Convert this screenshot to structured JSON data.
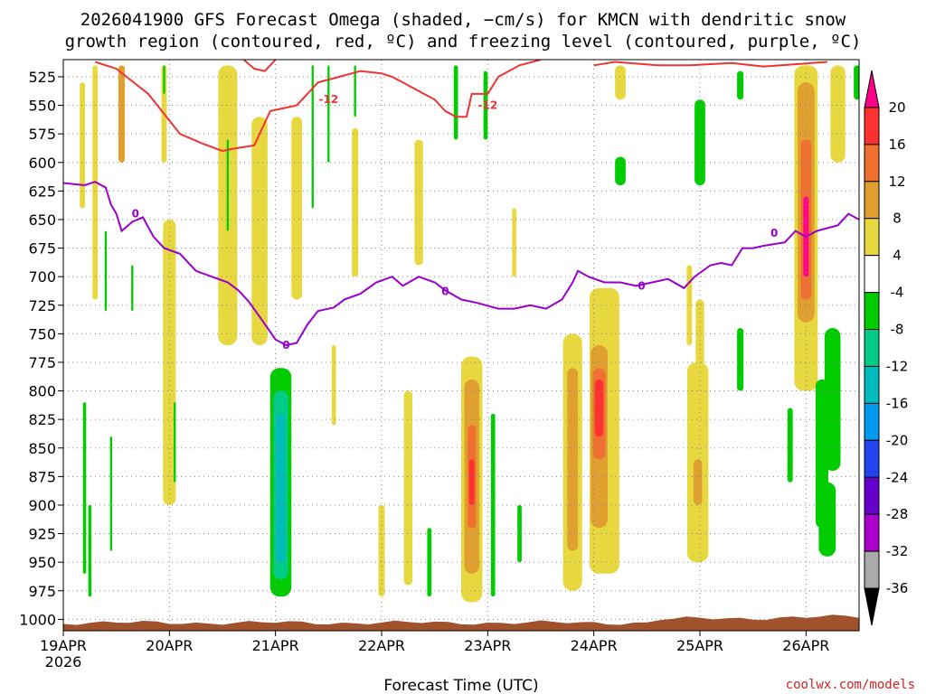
{
  "chart_data": {
    "type": "heatmap",
    "title_line1": "2026041900 GFS Forecast Omega (shaded, −cm/s) for KMCN with dendritic snow",
    "title_line2": "growth region (contoured, red, ºC) and freezing level (contoured, purple, ºC)",
    "xlabel": "Forecast Time (UTC)",
    "credit": "coolwx.com/models",
    "x_ticks": [
      {
        "day": 0,
        "label": "19APR",
        "sub": "2026"
      },
      {
        "day": 1,
        "label": "20APR",
        "sub": ""
      },
      {
        "day": 2,
        "label": "21APR",
        "sub": ""
      },
      {
        "day": 3,
        "label": "22APR",
        "sub": ""
      },
      {
        "day": 4,
        "label": "23APR",
        "sub": ""
      },
      {
        "day": 5,
        "label": "24APR",
        "sub": ""
      },
      {
        "day": 6,
        "label": "25APR",
        "sub": ""
      },
      {
        "day": 7,
        "label": "26APR",
        "sub": ""
      }
    ],
    "xlim_days": [
      0,
      7.5
    ],
    "y_ticks": [
      525,
      550,
      575,
      600,
      625,
      650,
      675,
      700,
      725,
      750,
      775,
      800,
      825,
      850,
      875,
      900,
      925,
      950,
      975,
      1000
    ],
    "ylim_hpa": [
      510,
      1010
    ],
    "colorbar": {
      "labels": [
        "20",
        "16",
        "12",
        "8",
        "4",
        "-4",
        "-8",
        "-12",
        "-16",
        "-20",
        "-24",
        "-28",
        "-32",
        "-36"
      ],
      "bins": [
        {
          "color": "#ff0088"
        },
        {
          "color": "#ff3030"
        },
        {
          "color": "#f07030"
        },
        {
          "color": "#e0a030"
        },
        {
          "color": "#e8d840"
        },
        {
          "color": "#ffffff"
        },
        {
          "color": "#00cc00"
        },
        {
          "color": "#00cc88"
        },
        {
          "color": "#00bbbb"
        },
        {
          "color": "#0099ee"
        },
        {
          "color": "#2244ee"
        },
        {
          "color": "#6600cc"
        },
        {
          "color": "#aa00cc"
        },
        {
          "color": "#aaaaaa"
        },
        {
          "color": "#000000"
        }
      ]
    },
    "shaded_cells": [
      {
        "day": 0.18,
        "width": 0.05,
        "p_top": 530,
        "p_bot": 640,
        "value": 6
      },
      {
        "day": 0.3,
        "width": 0.05,
        "p_top": 515,
        "p_bot": 720,
        "value": 6
      },
      {
        "day": 0.55,
        "width": 0.06,
        "p_top": 515,
        "p_bot": 600,
        "value": 10
      },
      {
        "day": 0.95,
        "width": 0.05,
        "p_top": 515,
        "p_bot": 600,
        "value": 6
      },
      {
        "day": 1.0,
        "width": 0.12,
        "p_top": 650,
        "p_bot": 900,
        "value": 6
      },
      {
        "day": 1.55,
        "width": 0.18,
        "p_top": 515,
        "p_bot": 760,
        "value": 6
      },
      {
        "day": 1.85,
        "width": 0.15,
        "p_top": 560,
        "p_bot": 760,
        "value": 6
      },
      {
        "day": 2.2,
        "width": 0.1,
        "p_top": 560,
        "p_bot": 720,
        "value": 6
      },
      {
        "day": 2.55,
        "width": 0.04,
        "p_top": 760,
        "p_bot": 830,
        "value": 6
      },
      {
        "day": 2.75,
        "width": 0.06,
        "p_top": 570,
        "p_bot": 700,
        "value": 6
      },
      {
        "day": 3.0,
        "width": 0.06,
        "p_top": 900,
        "p_bot": 980,
        "value": 6
      },
      {
        "day": 3.25,
        "width": 0.08,
        "p_top": 800,
        "p_bot": 970,
        "value": 6
      },
      {
        "day": 3.35,
        "width": 0.08,
        "p_top": 580,
        "p_bot": 690,
        "value": 6
      },
      {
        "day": 3.85,
        "width": 0.2,
        "p_top": 770,
        "p_bot": 985,
        "value": 6
      },
      {
        "day": 3.85,
        "width": 0.14,
        "p_top": 790,
        "p_bot": 960,
        "value": 10
      },
      {
        "day": 3.85,
        "width": 0.08,
        "p_top": 830,
        "p_bot": 920,
        "value": 14
      },
      {
        "day": 3.85,
        "width": 0.05,
        "p_top": 860,
        "p_bot": 900,
        "value": 18
      },
      {
        "day": 4.25,
        "width": 0.04,
        "p_top": 640,
        "p_bot": 700,
        "value": 6
      },
      {
        "day": 4.8,
        "width": 0.18,
        "p_top": 750,
        "p_bot": 975,
        "value": 6
      },
      {
        "day": 4.8,
        "width": 0.1,
        "p_top": 780,
        "p_bot": 940,
        "value": 10
      },
      {
        "day": 5.1,
        "width": 0.28,
        "p_top": 710,
        "p_bot": 960,
        "value": 6
      },
      {
        "day": 5.05,
        "width": 0.16,
        "p_top": 760,
        "p_bot": 920,
        "value": 10
      },
      {
        "day": 5.05,
        "width": 0.12,
        "p_top": 780,
        "p_bot": 860,
        "value": 14
      },
      {
        "day": 5.05,
        "width": 0.08,
        "p_top": 790,
        "p_bot": 840,
        "value": 18
      },
      {
        "day": 5.25,
        "width": 0.1,
        "p_top": 515,
        "p_bot": 545,
        "value": 6
      },
      {
        "day": 5.9,
        "width": 0.05,
        "p_top": 690,
        "p_bot": 760,
        "value": 6
      },
      {
        "day": 5.98,
        "width": 0.2,
        "p_top": 775,
        "p_bot": 950,
        "value": 6
      },
      {
        "day": 5.98,
        "width": 0.08,
        "p_top": 860,
        "p_bot": 900,
        "value": 10
      },
      {
        "day": 6.0,
        "width": 0.08,
        "p_top": 720,
        "p_bot": 780,
        "value": 6
      },
      {
        "day": 7.0,
        "width": 0.22,
        "p_top": 515,
        "p_bot": 800,
        "value": 6
      },
      {
        "day": 7.0,
        "width": 0.16,
        "p_top": 530,
        "p_bot": 740,
        "value": 10
      },
      {
        "day": 7.0,
        "width": 0.1,
        "p_top": 580,
        "p_bot": 720,
        "value": 14
      },
      {
        "day": 7.0,
        "width": 0.05,
        "p_top": 630,
        "p_bot": 700,
        "value": 22
      },
      {
        "day": 7.3,
        "width": 0.14,
        "p_top": 515,
        "p_bot": 600,
        "value": 6
      },
      {
        "day": 0.4,
        "width": 0.02,
        "p_top": 660,
        "p_bot": 730,
        "value": -6
      },
      {
        "day": 0.65,
        "width": 0.02,
        "p_top": 690,
        "p_bot": 730,
        "value": -6
      },
      {
        "day": 0.95,
        "width": 0.02,
        "p_top": 515,
        "p_bot": 540,
        "value": -6
      },
      {
        "day": 1.55,
        "width": 0.02,
        "p_top": 580,
        "p_bot": 660,
        "value": -6
      },
      {
        "day": 2.35,
        "width": 0.02,
        "p_top": 515,
        "p_bot": 640,
        "value": -6
      },
      {
        "day": 2.5,
        "width": 0.02,
        "p_top": 515,
        "p_bot": 600,
        "value": -6
      },
      {
        "day": 2.75,
        "width": 0.02,
        "p_top": 515,
        "p_bot": 560,
        "value": -6
      },
      {
        "day": 1.05,
        "width": 0.02,
        "p_top": 810,
        "p_bot": 880,
        "value": -6
      },
      {
        "day": 0.45,
        "width": 0.02,
        "p_top": 840,
        "p_bot": 940,
        "value": -6
      },
      {
        "day": 0.25,
        "width": 0.03,
        "p_top": 900,
        "p_bot": 980,
        "value": -6
      },
      {
        "day": 0.2,
        "width": 0.03,
        "p_top": 810,
        "p_bot": 960,
        "value": -6
      },
      {
        "day": 2.05,
        "width": 0.2,
        "p_top": 780,
        "p_bot": 980,
        "value": -6
      },
      {
        "day": 2.05,
        "width": 0.14,
        "p_top": 800,
        "p_bot": 965,
        "value": -10
      },
      {
        "day": 2.05,
        "width": 0.08,
        "p_top": 820,
        "p_bot": 950,
        "value": -14
      },
      {
        "day": 3.7,
        "width": 0.04,
        "p_top": 515,
        "p_bot": 580,
        "value": -6
      },
      {
        "day": 4.05,
        "width": 0.04,
        "p_top": 820,
        "p_bot": 980,
        "value": -6
      },
      {
        "day": 3.45,
        "width": 0.04,
        "p_top": 920,
        "p_bot": 980,
        "value": -6
      },
      {
        "day": 4.3,
        "width": 0.04,
        "p_top": 900,
        "p_bot": 950,
        "value": -6
      },
      {
        "day": 3.98,
        "width": 0.04,
        "p_top": 520,
        "p_bot": 580,
        "value": -6
      },
      {
        "day": 5.25,
        "width": 0.1,
        "p_top": 595,
        "p_bot": 620,
        "value": -6
      },
      {
        "day": 6.0,
        "width": 0.1,
        "p_top": 545,
        "p_bot": 620,
        "value": -6
      },
      {
        "day": 6.38,
        "width": 0.06,
        "p_top": 745,
        "p_bot": 800,
        "value": -6
      },
      {
        "day": 6.38,
        "width": 0.06,
        "p_top": 520,
        "p_bot": 545,
        "value": -6
      },
      {
        "day": 6.85,
        "width": 0.05,
        "p_top": 815,
        "p_bot": 880,
        "value": -6
      },
      {
        "day": 7.15,
        "width": 0.12,
        "p_top": 790,
        "p_bot": 920,
        "value": -6
      },
      {
        "day": 7.25,
        "width": 0.15,
        "p_top": 745,
        "p_bot": 870,
        "value": -6
      },
      {
        "day": 7.2,
        "width": 0.16,
        "p_top": 880,
        "p_bot": 945,
        "value": -6
      },
      {
        "day": 7.48,
        "width": 0.06,
        "p_top": 515,
        "p_bot": 545,
        "value": -6
      }
    ],
    "contours": [
      {
        "name": "dendritic snow growth -12",
        "color": "#ee3333",
        "labels": [
          {
            "text": "-12",
            "day": 2.5,
            "p": 545
          },
          {
            "text": "-12",
            "day": 4.0,
            "p": 550
          }
        ],
        "points": [
          [
            0.3,
            512
          ],
          [
            0.5,
            518
          ],
          [
            0.8,
            540
          ],
          [
            1.1,
            575
          ],
          [
            1.3,
            583
          ],
          [
            1.5,
            590
          ],
          [
            1.6,
            588
          ],
          [
            1.8,
            585
          ],
          [
            1.95,
            555
          ],
          [
            2.1,
            552
          ],
          [
            2.2,
            550
          ],
          [
            2.3,
            540
          ],
          [
            2.4,
            530
          ],
          [
            2.6,
            525
          ],
          [
            2.8,
            520
          ],
          [
            3.0,
            522
          ],
          [
            3.1,
            525
          ],
          [
            3.2,
            530
          ],
          [
            3.4,
            540
          ],
          [
            3.5,
            545
          ],
          [
            3.6,
            555
          ],
          [
            3.7,
            560
          ],
          [
            3.8,
            560
          ],
          [
            3.85,
            540
          ],
          [
            4.0,
            540
          ],
          [
            4.1,
            525
          ],
          [
            4.2,
            520
          ],
          [
            4.3,
            515
          ],
          [
            4.5,
            510
          ]
        ]
      },
      {
        "name": "dendritic snow growth top",
        "color": "#ee3333",
        "labels": [],
        "points": [
          [
            1.7,
            510
          ],
          [
            1.8,
            518
          ],
          [
            1.9,
            520
          ],
          [
            2.0,
            510
          ]
        ]
      },
      {
        "name": "dendritic snow growth top 2",
        "color": "#ee3333",
        "labels": [],
        "points": [
          [
            5.0,
            515
          ],
          [
            5.2,
            512
          ],
          [
            5.6,
            515
          ],
          [
            5.9,
            515
          ],
          [
            6.3,
            513
          ],
          [
            6.6,
            516
          ],
          [
            6.9,
            514
          ],
          [
            7.2,
            512
          ]
        ]
      },
      {
        "name": "freezing level 0",
        "color": "#9900cc",
        "labels": [
          {
            "text": "0",
            "day": 0.68,
            "p": 645
          },
          {
            "text": "0",
            "day": 2.1,
            "p": 760
          },
          {
            "text": "0",
            "day": 3.6,
            "p": 713
          },
          {
            "text": "0",
            "day": 5.45,
            "p": 708
          },
          {
            "text": "0",
            "day": 6.7,
            "p": 662
          }
        ],
        "points": [
          [
            0.0,
            618
          ],
          [
            0.2,
            620
          ],
          [
            0.3,
            617
          ],
          [
            0.4,
            622
          ],
          [
            0.45,
            637
          ],
          [
            0.5,
            645
          ],
          [
            0.55,
            660
          ],
          [
            0.65,
            652
          ],
          [
            0.75,
            648
          ],
          [
            0.85,
            665
          ],
          [
            0.95,
            675
          ],
          [
            1.1,
            680
          ],
          [
            1.25,
            695
          ],
          [
            1.4,
            700
          ],
          [
            1.55,
            705
          ],
          [
            1.65,
            712
          ],
          [
            1.75,
            722
          ],
          [
            1.85,
            735
          ],
          [
            2.0,
            755
          ],
          [
            2.1,
            760
          ],
          [
            2.2,
            758
          ],
          [
            2.3,
            742
          ],
          [
            2.4,
            730
          ],
          [
            2.55,
            727
          ],
          [
            2.65,
            720
          ],
          [
            2.8,
            715
          ],
          [
            2.95,
            705
          ],
          [
            3.1,
            700
          ],
          [
            3.2,
            708
          ],
          [
            3.35,
            700
          ],
          [
            3.5,
            705
          ],
          [
            3.6,
            712
          ],
          [
            3.75,
            720
          ],
          [
            3.9,
            723
          ],
          [
            4.1,
            728
          ],
          [
            4.25,
            728
          ],
          [
            4.4,
            725
          ],
          [
            4.55,
            728
          ],
          [
            4.7,
            720
          ],
          [
            4.8,
            705
          ],
          [
            4.85,
            695
          ],
          [
            4.95,
            700
          ],
          [
            5.1,
            705
          ],
          [
            5.25,
            705
          ],
          [
            5.4,
            708
          ],
          [
            5.55,
            705
          ],
          [
            5.7,
            702
          ],
          [
            5.85,
            710
          ],
          [
            5.95,
            700
          ],
          [
            6.1,
            690
          ],
          [
            6.2,
            688
          ],
          [
            6.3,
            690
          ],
          [
            6.4,
            675
          ],
          [
            6.5,
            675
          ],
          [
            6.6,
            673
          ],
          [
            6.8,
            670
          ],
          [
            6.9,
            660
          ],
          [
            7.0,
            665
          ],
          [
            7.1,
            660
          ],
          [
            7.3,
            655
          ],
          [
            7.4,
            645
          ],
          [
            7.5,
            650
          ]
        ]
      }
    ]
  }
}
